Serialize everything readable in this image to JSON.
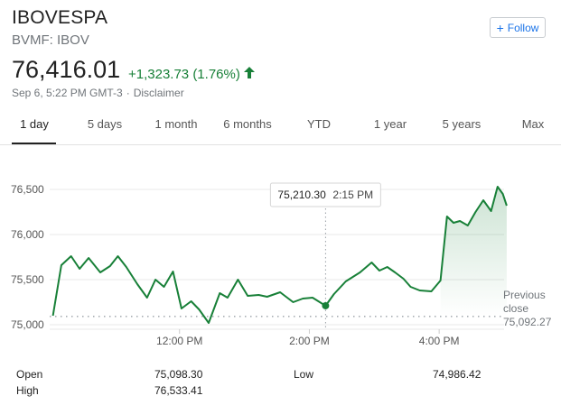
{
  "header": {
    "title": "IBOVESPA",
    "subtitle": "BVMF: IBOV",
    "follow_label": "Follow"
  },
  "quote": {
    "price": "76,416.01",
    "change": "+1,323.73 (1.76%)",
    "timestamp": "Sep 6, 5:22 PM GMT-3",
    "separator": "·",
    "disclaimer": "Disclaimer",
    "up_color": "#188038"
  },
  "tabs": [
    {
      "label": "1 day",
      "active": true
    },
    {
      "label": "5 days"
    },
    {
      "label": "1 month"
    },
    {
      "label": "6 months"
    },
    {
      "label": "YTD"
    },
    {
      "label": "1 year"
    },
    {
      "label": "5 years"
    },
    {
      "label": "Max"
    }
  ],
  "chart_data": {
    "type": "line",
    "y_ticks": [
      "76,500",
      "76,000",
      "75,500",
      "75,000"
    ],
    "y_tick_values": [
      76500,
      76000,
      75500,
      75000
    ],
    "x_ticks": [
      "12:00 PM",
      "2:00 PM",
      "4:00 PM"
    ],
    "x_tick_values": [
      12.0,
      14.0,
      16.0
    ],
    "x_range": [
      10.0,
      17.0
    ],
    "y_range": [
      74950,
      76650
    ],
    "line_color": "#188038",
    "previous_close": 75092.27,
    "previous_close_label": "Previous close",
    "previous_close_value_text": "75,092.27",
    "tooltip": {
      "value": "75,210.30",
      "time": "2:15 PM",
      "x": 14.25,
      "y": 75210.3
    },
    "series": [
      {
        "x": [
          10.05,
          10.18,
          10.33,
          10.46,
          10.6,
          10.78,
          10.93,
          11.05,
          11.18,
          11.35,
          11.5,
          11.63,
          11.76,
          11.9,
          12.03,
          12.18,
          12.3,
          12.45,
          12.62,
          12.74,
          12.9,
          13.05,
          13.22,
          13.35,
          13.55,
          13.75,
          13.9,
          14.05,
          14.25,
          14.38,
          14.56,
          14.78,
          14.96,
          15.08,
          15.2,
          15.32,
          15.45,
          15.56,
          15.7,
          15.88,
          16.02,
          16.12,
          16.22,
          16.32,
          16.44,
          16.56,
          16.68,
          16.8,
          16.9,
          16.98,
          17.04
        ],
        "y": [
          75100,
          75660,
          75760,
          75620,
          75740,
          75580,
          75650,
          75760,
          75640,
          75450,
          75300,
          75500,
          75420,
          75590,
          75180,
          75260,
          75170,
          75020,
          75350,
          75300,
          75500,
          75320,
          75330,
          75310,
          75360,
          75250,
          75290,
          75300,
          75210,
          75340,
          75480,
          75580,
          75690,
          75600,
          75640,
          75580,
          75510,
          75420,
          75380,
          75370,
          75490,
          76200,
          76130,
          76150,
          76100,
          76250,
          76380,
          76260,
          76530,
          76450,
          76320
        ]
      }
    ]
  },
  "stats": {
    "open_label": "Open",
    "open_value": "75,098.30",
    "high_label": "High",
    "high_value": "76,533.41",
    "low_label": "Low",
    "low_value": "74,986.42"
  }
}
